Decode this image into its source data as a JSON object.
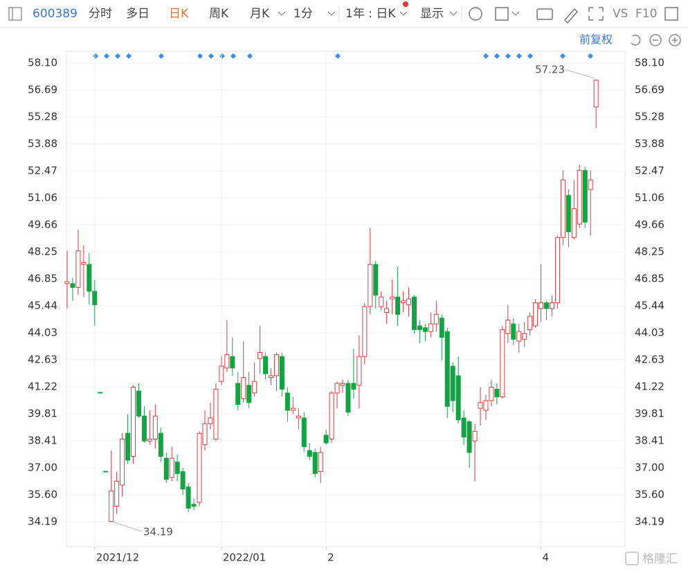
{
  "toolbar": {
    "code": "600389",
    "tabs": [
      "分时",
      "多日",
      "日K",
      "周K",
      "月K",
      "1分"
    ],
    "period": "1年 : 日K",
    "display": "显示",
    "vs": "VS",
    "f10": "F10",
    "adjust": "前复权"
  },
  "watermark": "格隆汇",
  "chart_data": {
    "type": "candlestick",
    "categories": [
      null,
      null,
      null,
      null,
      null,
      "2021/12",
      null,
      null,
      null,
      null,
      null,
      null,
      null,
      null,
      null,
      null,
      null,
      null,
      null,
      null,
      null,
      null,
      null,
      null,
      null,
      null,
      null,
      null,
      "2022/01",
      null,
      null,
      null,
      null,
      null,
      null,
      null,
      null,
      null,
      null,
      null,
      null,
      null,
      null,
      null,
      null,
      null,
      null,
      "2",
      null,
      null,
      null,
      null,
      null,
      null,
      null,
      null,
      null,
      null,
      null,
      null,
      null,
      null,
      null,
      null,
      null,
      null,
      null,
      null,
      null,
      null,
      null,
      null,
      null,
      null,
      null,
      null,
      null,
      null,
      null,
      null,
      null,
      null,
      null,
      null,
      null,
      null,
      "4",
      null,
      null,
      null,
      null,
      null,
      null,
      null,
      null,
      null,
      null
    ],
    "open": [
      46.6,
      46.6,
      46.4,
      47.6,
      47.6,
      46.2,
      40.93,
      36.82,
      34.2,
      35.0,
      36.1,
      38.8,
      37.6,
      41.0,
      39.7,
      38.4,
      38.5,
      38.8,
      37.5,
      36.5,
      37.3,
      36.8,
      36.0,
      35.1,
      35.2,
      38.2,
      39.3,
      38.5,
      41.5,
      42.2,
      42.8,
      41.4,
      40.6,
      41.3,
      40.9,
      42.7,
      42.8,
      41.7,
      41.8,
      42.8,
      40.9,
      40.0,
      39.6,
      39.6,
      37.9,
      37.8,
      36.8,
      38.7,
      38.5,
      40.9,
      41.3,
      41.4,
      41.4,
      41.3,
      42.8,
      45.4,
      47.6,
      45.4,
      45.1,
      45.8,
      45.9,
      45.6,
      45.5,
      45.9,
      44.4,
      44.3,
      44.1,
      44.5,
      44.8,
      44.1,
      42.3,
      41.8,
      39.6,
      39.4,
      38.4,
      40.1,
      40.0,
      40.5,
      41.1,
      40.7,
      44.0,
      44.5,
      43.6,
      43.7,
      44.2,
      44.4,
      45.3,
      45.6,
      45.3,
      45.6,
      49.0,
      51.2,
      49.0,
      49.7,
      52.5,
      51.5,
      55.8
    ],
    "high": [
      48.3,
      46.9,
      49.4,
      48.6,
      48.2,
      46.8,
      40.93,
      36.82,
      37.9,
      36.8,
      38.8,
      39.8,
      41.3,
      41.4,
      40.2,
      40.0,
      40.3,
      39.1,
      37.8,
      38.1,
      37.7,
      37.0,
      36.2,
      35.4,
      38.9,
      40.0,
      40.4,
      41.4,
      42.8,
      44.7,
      43.8,
      42.0,
      43.6,
      42.0,
      42.5,
      44.4,
      43.0,
      42.2,
      43.0,
      43.0,
      41.2,
      40.7,
      40.1,
      39.9,
      38.3,
      38.0,
      38.1,
      39.0,
      41.0,
      41.5,
      41.6,
      41.6,
      43.2,
      43.9,
      45.6,
      49.5,
      47.8,
      46.2,
      45.7,
      46.8,
      47.5,
      46.2,
      46.4,
      46.0,
      44.7,
      44.5,
      45.1,
      45.7,
      45.0,
      44.3,
      42.5,
      42.8,
      40.0,
      39.5,
      39.3,
      41.2,
      40.8,
      41.6,
      41.4,
      44.4,
      45.5,
      44.8,
      44.5,
      44.6,
      45.1,
      45.8,
      47.6,
      45.7,
      46.0,
      49.1,
      52.5,
      51.5,
      52.0,
      52.8,
      52.7,
      52.5,
      57.23
    ],
    "low": [
      45.3,
      45.7,
      46.0,
      45.9,
      45.5,
      44.4,
      40.93,
      36.82,
      34.19,
      34.6,
      35.5,
      37.2,
      37.2,
      39.6,
      38.3,
      38.2,
      38.0,
      37.3,
      36.2,
      36.3,
      36.3,
      35.6,
      34.7,
      34.8,
      35.0,
      37.9,
      39.0,
      38.4,
      41.3,
      42.0,
      41.8,
      40.0,
      40.4,
      40.1,
      40.7,
      41.9,
      41.6,
      41.3,
      41.0,
      40.7,
      39.4,
      39.8,
      39.0,
      37.8,
      37.4,
      36.5,
      36.2,
      38.2,
      38.3,
      40.1,
      40.9,
      39.7,
      40.6,
      40.1,
      42.4,
      45.0,
      45.3,
      45.2,
      44.5,
      45.0,
      44.4,
      45.1,
      44.9,
      44.0,
      43.5,
      43.6,
      43.8,
      44.1,
      42.6,
      39.6,
      39.9,
      39.3,
      38.2,
      37.0,
      36.3,
      39.2,
      39.5,
      40.2,
      40.3,
      40.6,
      43.5,
      43.4,
      43.0,
      43.3,
      43.9,
      44.3,
      44.6,
      44.7,
      44.9,
      45.3,
      48.6,
      48.5,
      48.9,
      49.5,
      49.5,
      49.1,
      54.7
    ],
    "close": [
      46.7,
      46.4,
      48.3,
      47.7,
      46.2,
      45.5,
      40.93,
      36.82,
      35.8,
      36.3,
      38.5,
      37.4,
      41.2,
      39.7,
      38.4,
      38.5,
      39.7,
      37.6,
      36.4,
      37.5,
      36.7,
      35.9,
      34.9,
      35.0,
      38.8,
      39.3,
      39.6,
      41.1,
      42.3,
      42.9,
      42.2,
      40.3,
      41.7,
      40.4,
      41.5,
      43.0,
      41.9,
      41.8,
      42.9,
      41.1,
      40.0,
      40.1,
      39.7,
      38.1,
      37.6,
      36.7,
      37.8,
      38.3,
      40.9,
      41.4,
      41.4,
      39.9,
      41.1,
      42.8,
      45.4,
      47.6,
      46.0,
      45.9,
      45.3,
      45.9,
      45.0,
      45.7,
      45.8,
      44.2,
      44.2,
      44.1,
      44.5,
      45.0,
      43.8,
      40.2,
      40.5,
      39.5,
      38.6,
      37.8,
      38.9,
      40.4,
      40.5,
      41.2,
      40.7,
      44.2,
      44.7,
      43.7,
      44.1,
      44.0,
      44.9,
      45.6,
      45.6,
      45.3,
      45.6,
      49.0,
      52.0,
      49.3,
      50.5,
      52.5,
      49.8,
      52.0,
      57.2
    ],
    "up_color": "#e0393e",
    "down_color": "#10a543",
    "max_label": 57.23,
    "min_label": 34.19,
    "ylim": [
      32.89,
      58.71
    ],
    "yticks": [
      {
        "value": 58.1,
        "label": "58.10"
      },
      56.69,
      55.28,
      53.88,
      52.47,
      51.06,
      49.66,
      48.25,
      46.85,
      45.44,
      44.03,
      42.63,
      41.22,
      39.81,
      38.41,
      {
        "value": 37,
        "label": "37.00"
      },
      {
        "value": 35.6,
        "label": "35.60"
      },
      34.19
    ],
    "grid": true
  }
}
